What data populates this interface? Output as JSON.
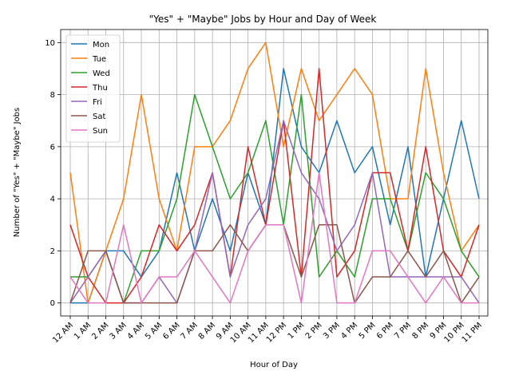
{
  "chart_data": {
    "type": "line",
    "title": "\"Yes\" + \"Maybe\" Jobs by Hour and Day of Week",
    "xlabel": "Hour of Day",
    "ylabel": "Number of \"Yes\" + \"Maybe\" Jobs",
    "categories": [
      "12 AM",
      "1 AM",
      "2 AM",
      "3 AM",
      "4 AM",
      "5 AM",
      "6 AM",
      "7 AM",
      "8 AM",
      "9 AM",
      "10 AM",
      "11 AM",
      "12 PM",
      "1 PM",
      "2 PM",
      "3 PM",
      "4 PM",
      "5 PM",
      "6 PM",
      "7 PM",
      "8 PM",
      "9 PM",
      "10 PM",
      "11 PM"
    ],
    "ylim": [
      -0.5,
      10.5
    ],
    "yticks": [
      0,
      2,
      4,
      6,
      8,
      10
    ],
    "grid": true,
    "legend_position": "top-left",
    "series": [
      {
        "name": "Mon",
        "color": "#1f77b4",
        "values": [
          0,
          0,
          2,
          2,
          1,
          2,
          5,
          2,
          4,
          2,
          5,
          3,
          9,
          6,
          5,
          7,
          5,
          6,
          3,
          6,
          1,
          4,
          7,
          4
        ]
      },
      {
        "name": "Tue",
        "color": "#ff7f0e",
        "values": [
          5,
          0,
          2,
          4,
          8,
          4,
          2,
          6,
          6,
          7,
          9,
          10,
          6,
          9,
          7,
          8,
          9,
          8,
          4,
          4,
          9,
          5,
          2,
          3
        ]
      },
      {
        "name": "Wed",
        "color": "#2ca02c",
        "values": [
          1,
          1,
          2,
          0,
          2,
          2,
          4,
          8,
          6,
          4,
          5,
          7,
          3,
          8,
          1,
          2,
          1,
          4,
          4,
          2,
          5,
          4,
          2,
          1
        ]
      },
      {
        "name": "Thu",
        "color": "#d62728",
        "values": [
          3,
          1,
          0,
          0,
          1,
          3,
          2,
          3,
          5,
          1,
          6,
          3,
          7,
          1,
          9,
          1,
          2,
          5,
          5,
          2,
          6,
          2,
          1,
          3
        ]
      },
      {
        "name": "Fri",
        "color": "#9467bd",
        "values": [
          0,
          1,
          2,
          0,
          0,
          1,
          0,
          2,
          5,
          1,
          3,
          4,
          7,
          5,
          4,
          2,
          3,
          5,
          1,
          1,
          1,
          1,
          1,
          0
        ]
      },
      {
        "name": "Sat",
        "color": "#8c564b",
        "values": [
          0,
          2,
          2,
          0,
          0,
          0,
          0,
          2,
          2,
          3,
          2,
          3,
          3,
          1,
          3,
          3,
          0,
          1,
          1,
          2,
          1,
          2,
          0,
          1
        ]
      },
      {
        "name": "Sun",
        "color": "#e377c2",
        "values": [
          1,
          0,
          0,
          3,
          0,
          1,
          1,
          2,
          1,
          0,
          2,
          3,
          3,
          0,
          5,
          0,
          0,
          2,
          2,
          1,
          0,
          1,
          0,
          0
        ]
      }
    ]
  }
}
